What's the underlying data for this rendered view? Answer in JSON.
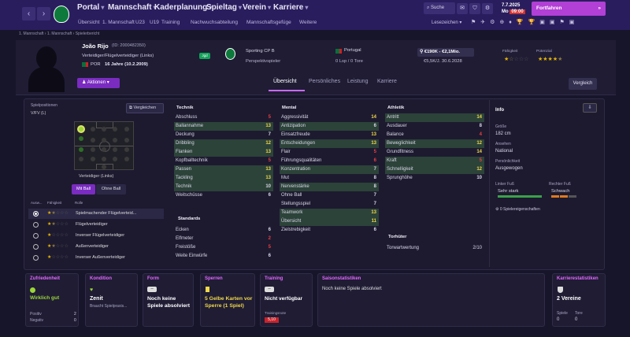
{
  "topbar": {
    "nav": [
      {
        "label": "Portal"
      },
      {
        "label": "Mannschaft"
      },
      {
        "label": "Kaderplanung"
      },
      {
        "label": "Spieltag"
      },
      {
        "label": "Verein"
      },
      {
        "label": "Karriere"
      }
    ],
    "sub": [
      "Übersicht",
      "1. Mannschaft",
      "U23",
      "U19",
      "Training",
      "Nachwuchsabteilung",
      "Mannschaftsgefüge",
      "Weitere"
    ],
    "search": "Suche",
    "date": "7.7.2025",
    "day": "Mo",
    "time": "09:00",
    "continue": "Fortfahren",
    "bookmarks": "Lesezeichen"
  },
  "breadcrumb": [
    "1. Mannschaft",
    "1. Mannschaft",
    "Spielerbericht"
  ],
  "player": {
    "name": "João Rijo",
    "id": "(ID: 2000482350)",
    "position": "Verteidiger/Flügelverteidiger (Links)",
    "nation": "POR",
    "age": "16 Jahre (10.2.2009)",
    "club": "Sporting CP B",
    "role": "Perspektivspieler",
    "country": "Portugal",
    "caps": "0 Lsp / 0 Tore",
    "value": "€190K - €2,1Mio.",
    "contract": "€5,5K/J. 30.6.2028",
    "badge": "Jgd",
    "ability_label": "Fähigkeit",
    "potential_label": "Potenzial"
  },
  "actions": "Aktionen",
  "compare": "Vergleich",
  "tabs": [
    "Übersicht",
    "Persönliches",
    "Leistung",
    "Karriere"
  ],
  "positions": {
    "title": "Spielpositionen",
    "pos": "V/FV (L)",
    "compare": "Vergleichen",
    "label": "Verteidiger (Links)",
    "with_ball": "Mit Ball",
    "without_ball": "Ohne Ball"
  },
  "roles": {
    "headers": [
      "Ausw...",
      "Fähigkeit",
      "Rolle"
    ],
    "items": [
      "Spielmachender Flügelverteid...",
      "Flügelverteidiger",
      "Inverser Flügelverteidiger",
      "Außenverteidiger",
      "Inverser Außenverteidiger"
    ]
  },
  "technik": {
    "title": "Technik",
    "rows": [
      [
        "Abschluss",
        "5"
      ],
      [
        "Ballannahme",
        "13"
      ],
      [
        "Deckung",
        "7"
      ],
      [
        "Dribbling",
        "12"
      ],
      [
        "Flanken",
        "13"
      ],
      [
        "Kopfballtechnik",
        "5"
      ],
      [
        "Passen",
        "13"
      ],
      [
        "Tackling",
        "13"
      ],
      [
        "Technik",
        "10"
      ],
      [
        "Weitschüsse",
        "6"
      ]
    ]
  },
  "standards": {
    "title": "Standards",
    "rows": [
      [
        "Ecken",
        "6"
      ],
      [
        "Elfmeter",
        "2"
      ],
      [
        "Freistöße",
        "5"
      ],
      [
        "Weite Einwürfe",
        "6"
      ]
    ]
  },
  "mental": {
    "title": "Mental",
    "rows": [
      [
        "Aggressivität",
        "14"
      ],
      [
        "Antizipation",
        "6"
      ],
      [
        "Einsatzfreude",
        "13"
      ],
      [
        "Entscheidungen",
        "13"
      ],
      [
        "Flair",
        "5"
      ],
      [
        "Führungsqualitäten",
        "6"
      ],
      [
        "Konzentration",
        "7"
      ],
      [
        "Mut",
        "8"
      ],
      [
        "Nervenstärke",
        "8"
      ],
      [
        "Ohne Ball",
        "7"
      ],
      [
        "Stellungsspiel",
        "7"
      ],
      [
        "Teamwork",
        "13"
      ],
      [
        "Übersicht",
        "11"
      ],
      [
        "Zielstrebigkeit",
        "6"
      ]
    ]
  },
  "athletik": {
    "title": "Athletik",
    "rows": [
      [
        "Antritt",
        "14"
      ],
      [
        "Ausdauer",
        "8"
      ],
      [
        "Balance",
        "4"
      ],
      [
        "Beweglichkeit",
        "12"
      ],
      [
        "Grundfitness",
        "14"
      ],
      [
        "Kraft",
        "5"
      ],
      [
        "Schnelligkeit",
        "12"
      ],
      [
        "Sprunghöhe",
        "10"
      ]
    ]
  },
  "torhueter": {
    "title": "Torhüter",
    "label": "Torwartwertung",
    "value": "2/10"
  },
  "info": {
    "title": "Info",
    "groesse_l": "Größe",
    "groesse": "182 cm",
    "ansehen_l": "Ansehen",
    "ansehen": "National",
    "pers_l": "Persönlichkeit",
    "pers": "Ausgewogen",
    "lf_l": "Linker Fuß",
    "lf": "Sehr stark",
    "rf_l": "Rechter Fuß",
    "rf": "Schwach",
    "traits": "0 Spielereigenschaften"
  },
  "cards": {
    "zuf": {
      "t": "Zufriedenheit",
      "v": "Wirklich gut",
      "pos_l": "Positiv",
      "pos": "2",
      "neg_l": "Negativ",
      "neg": "0"
    },
    "kon": {
      "t": "Kondition",
      "v": "Zenit",
      "s": "Braucht Spielpraxis..."
    },
    "form": {
      "t": "Form",
      "v": "Noch keine Spiele absolviert"
    },
    "sperren": {
      "t": "Sperren",
      "v": "5 Gelbe Karten vor Sperre (1 Spiel)"
    },
    "training": {
      "t": "Training",
      "v": "Nicht verfügbar",
      "note_l": "Trainingsnote",
      "note": "5,10"
    },
    "saison": {
      "t": "Saisonstatistiken",
      "v": "Noch keine Spiele absolviert"
    },
    "karriere": {
      "t": "Karrierestatistiken",
      "v": "2 Vereine",
      "sp_l": "Spiele",
      "sp": "0",
      "tore_l": "Tore",
      "tore": "0"
    }
  }
}
